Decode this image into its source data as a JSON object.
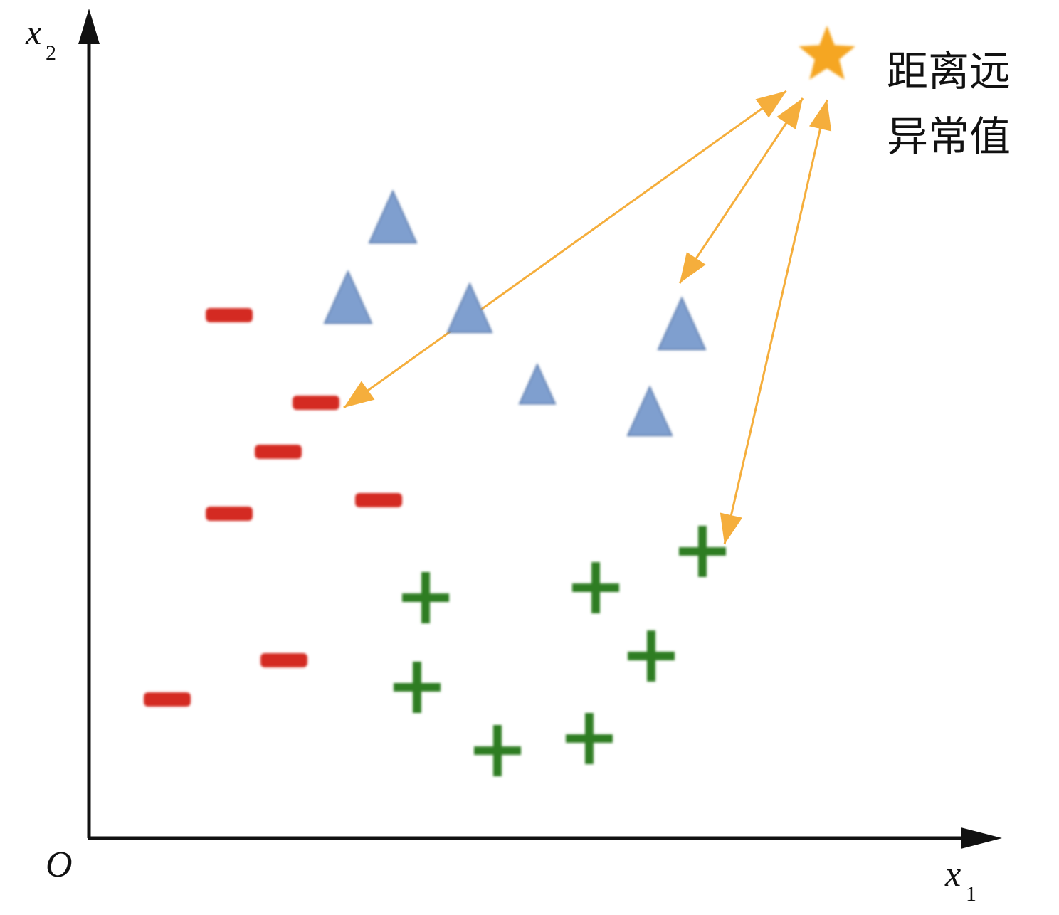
{
  "axes": {
    "x_label": "x",
    "x_sub": "1",
    "y_label": "x",
    "y_sub": "2",
    "origin_label": "O"
  },
  "annotation": {
    "line1": "距离远",
    "line2": "异常值"
  },
  "classes": [
    {
      "marker": "minus",
      "color": "#d42a24"
    },
    {
      "marker": "triangle",
      "color": "#7f9fcf"
    },
    {
      "marker": "plus",
      "color": "#2e7d23"
    }
  ],
  "outlier": {
    "marker": "star",
    "color": "#f5a623"
  },
  "arrow_color": "#f5ae3c",
  "axis_color": "#111111"
}
